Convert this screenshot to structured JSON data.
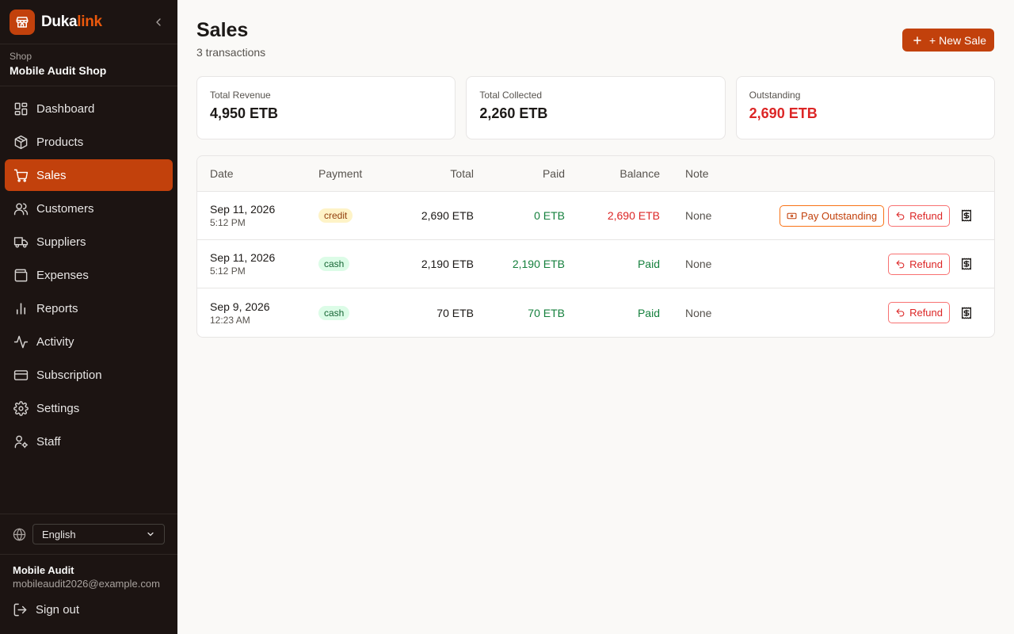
{
  "brand": {
    "name_main": "Duka",
    "name_accent": "link",
    "accent_color": "#c2410c"
  },
  "shop": {
    "label": "Shop",
    "name": "Mobile Audit Shop"
  },
  "nav": [
    {
      "label": "Dashboard",
      "icon": "dashboard-icon",
      "active": false
    },
    {
      "label": "Products",
      "icon": "package-icon",
      "active": false
    },
    {
      "label": "Sales",
      "icon": "cart-icon",
      "active": true
    },
    {
      "label": "Customers",
      "icon": "users-icon",
      "active": false
    },
    {
      "label": "Suppliers",
      "icon": "truck-icon",
      "active": false
    },
    {
      "label": "Expenses",
      "icon": "wallet-icon",
      "active": false
    },
    {
      "label": "Reports",
      "icon": "bar-chart-icon",
      "active": false
    },
    {
      "label": "Activity",
      "icon": "activity-icon",
      "active": false
    },
    {
      "label": "Subscription",
      "icon": "credit-card-icon",
      "active": false
    },
    {
      "label": "Settings",
      "icon": "gear-icon",
      "active": false
    },
    {
      "label": "Staff",
      "icon": "user-cog-icon",
      "active": false
    }
  ],
  "language": {
    "selected": "English"
  },
  "user": {
    "name": "Mobile Audit",
    "email": "mobileaudit2026@example.com",
    "signout_label": "Sign out"
  },
  "page": {
    "title": "Sales",
    "subtitle": "3 transactions",
    "new_sale_label": "+ New Sale"
  },
  "stats": [
    {
      "label": "Total Revenue",
      "value": "4,950 ETB",
      "highlight": false
    },
    {
      "label": "Total Collected",
      "value": "2,260 ETB",
      "highlight": false
    },
    {
      "label": "Outstanding",
      "value": "2,690 ETB",
      "highlight": true
    }
  ],
  "table": {
    "headers": {
      "date": "Date",
      "payment": "Payment",
      "total": "Total",
      "paid": "Paid",
      "balance": "Balance",
      "note": "Note"
    },
    "rows": [
      {
        "date": "Sep 11, 2026",
        "time": "5:12 PM",
        "payment": "credit",
        "total": "2,690 ETB",
        "paid": "0 ETB",
        "balance": "2,690 ETB",
        "balance_status": "due",
        "note": "None",
        "pay_outstanding_label": "Pay Outstanding",
        "refund_label": "Refund"
      },
      {
        "date": "Sep 11, 2026",
        "time": "5:12 PM",
        "payment": "cash",
        "total": "2,190 ETB",
        "paid": "2,190 ETB",
        "balance": "Paid",
        "balance_status": "paid",
        "note": "None",
        "refund_label": "Refund"
      },
      {
        "date": "Sep 9, 2026",
        "time": "12:23 AM",
        "payment": "cash",
        "total": "70 ETB",
        "paid": "70 ETB",
        "balance": "Paid",
        "balance_status": "paid",
        "note": "None",
        "refund_label": "Refund"
      }
    ]
  }
}
